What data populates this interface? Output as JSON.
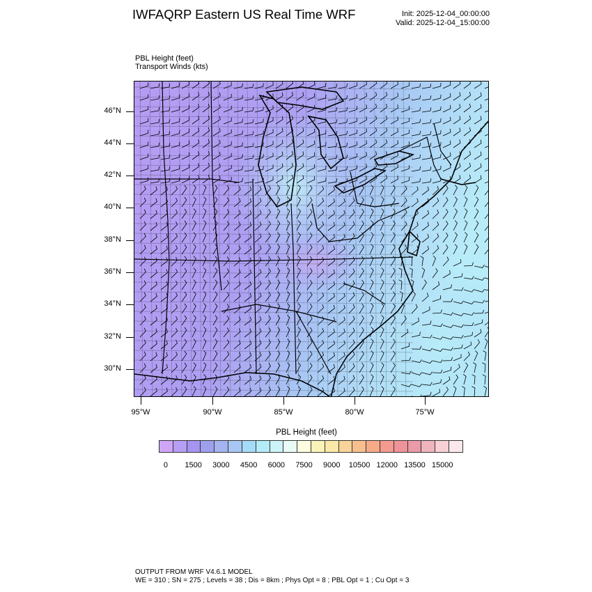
{
  "header": {
    "title": "IWFAQRP Eastern US Real Time WRF",
    "init": "Init: 2025-12-04_00:00:00",
    "valid": "Valid: 2025-12-04_15:00:00"
  },
  "subtitles": {
    "line1": "PBL Height   (feet)",
    "line2": "Transport Winds   (kts)"
  },
  "map": {
    "lat_labels": [
      "46°N",
      "44°N",
      "42°N",
      "40°N",
      "38°N",
      "36°N",
      "34°N",
      "32°N",
      "30°N"
    ],
    "lon_labels": [
      "95°W",
      "90°W",
      "85°W",
      "80°W",
      "75°W"
    ],
    "field_colors": {
      "low": "#b69cf2",
      "mid": "#a8c8f4",
      "high": "#b8ecf8"
    },
    "overlay_color": "#000000"
  },
  "colorbar": {
    "title": "PBL Height  (feet)",
    "labels": [
      "0",
      "1500",
      "3000",
      "4500",
      "6000",
      "7500",
      "9000",
      "10500",
      "12000",
      "13500",
      "15000"
    ],
    "colors": [
      "#cfa6f7",
      "#b79ef5",
      "#a594f1",
      "#9ea0ee",
      "#a3b4f0",
      "#a8c6f4",
      "#a4dbf7",
      "#b3ecf8",
      "#ccf3f8",
      "#e8fbf6",
      "#fdfde0",
      "#fcf3b8",
      "#fbe7a6",
      "#f9d49a",
      "#f7bf8e",
      "#f6aa88",
      "#f49a8e",
      "#f0929a",
      "#eb9aa7",
      "#efb4bc",
      "#f6d0d5",
      "#fce8ec"
    ]
  },
  "footer": {
    "line1": "OUTPUT FROM WRF V4.6.1 MODEL",
    "line2": "WE = 310 ; SN = 275 ; Levels = 38 ; Dis = 8km ; Phys Opt = 8 ; PBL Opt = 1 ; Cu Opt = 3"
  }
}
